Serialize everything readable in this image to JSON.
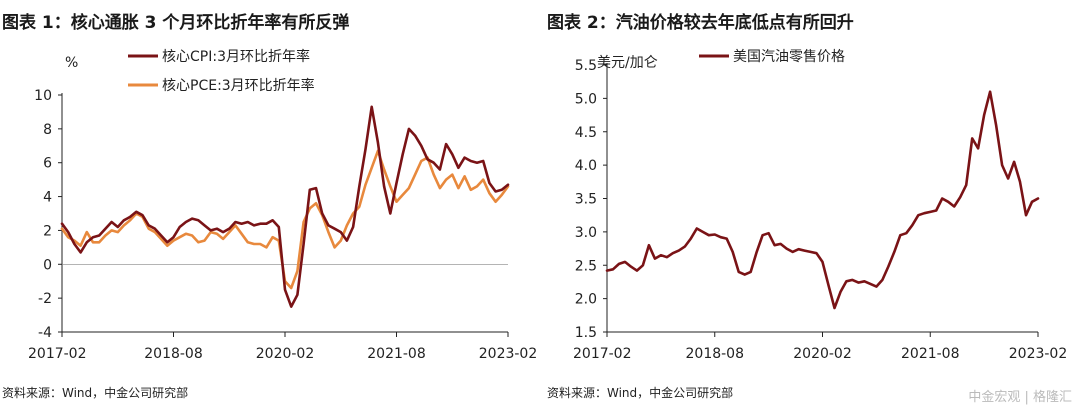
{
  "charts": [
    {
      "panel_title": "图表 1：核心通胀 3 个月环比折年率有所反弹",
      "source": "资料来源：Wind，中金公司研究部",
      "unit": "%",
      "chart_data": {
        "type": "line",
        "title": "图表 1：核心通胀 3 个月环比折年率有所反弹",
        "ylabel": "%",
        "xlabel": "",
        "ylim": [
          -4,
          10
        ],
        "yticks": [
          -4,
          -2,
          0,
          2,
          4,
          6,
          8,
          10
        ],
        "x_tick_labels": [
          "2017-02",
          "2018-08",
          "2020-02",
          "2021-08",
          "2023-02"
        ],
        "legend_position": "top-center",
        "grid": false,
        "x": [
          "2017-02",
          "2017-03",
          "2017-04",
          "2017-05",
          "2017-06",
          "2017-07",
          "2017-08",
          "2017-09",
          "2017-10",
          "2017-11",
          "2017-12",
          "2018-01",
          "2018-02",
          "2018-03",
          "2018-04",
          "2018-05",
          "2018-06",
          "2018-07",
          "2018-08",
          "2018-09",
          "2018-10",
          "2018-11",
          "2018-12",
          "2019-01",
          "2019-02",
          "2019-03",
          "2019-04",
          "2019-05",
          "2019-06",
          "2019-07",
          "2019-08",
          "2019-09",
          "2019-10",
          "2019-11",
          "2019-12",
          "2020-01",
          "2020-02",
          "2020-03",
          "2020-04",
          "2020-05",
          "2020-06",
          "2020-07",
          "2020-08",
          "2020-09",
          "2020-10",
          "2020-11",
          "2020-12",
          "2021-01",
          "2021-02",
          "2021-03",
          "2021-04",
          "2021-05",
          "2021-06",
          "2021-07",
          "2021-08",
          "2021-09",
          "2021-10",
          "2021-11",
          "2021-12",
          "2022-01",
          "2022-02",
          "2022-03",
          "2022-04",
          "2022-05",
          "2022-06",
          "2022-07",
          "2022-08",
          "2022-09",
          "2022-10",
          "2022-11",
          "2022-12",
          "2023-01",
          "2023-02"
        ],
        "series": [
          {
            "name": "核心CPI:3月环比折年率",
            "color": "#7a1316",
            "values": [
              2.4,
              1.9,
              1.2,
              0.7,
              1.3,
              1.6,
              1.7,
              2.1,
              2.5,
              2.2,
              2.6,
              2.8,
              3.1,
              2.9,
              2.3,
              2.1,
              1.7,
              1.3,
              1.6,
              2.2,
              2.5,
              2.7,
              2.6,
              2.3,
              2.0,
              2.1,
              1.9,
              2.1,
              2.5,
              2.4,
              2.5,
              2.3,
              2.4,
              2.4,
              2.6,
              2.2,
              -1.5,
              -2.5,
              -1.8,
              1.2,
              4.4,
              4.5,
              3.0,
              2.3,
              2.1,
              1.9,
              1.4,
              2.2,
              4.6,
              6.8,
              9.3,
              7.2,
              4.6,
              3.0,
              4.8,
              6.5,
              8.0,
              7.6,
              7.0,
              6.2,
              6.0,
              5.6,
              7.1,
              6.5,
              5.7,
              6.3,
              6.1,
              6.0,
              6.1,
              4.8,
              4.3,
              4.4,
              4.7
            ]
          },
          {
            "name": "核心PCE:3月环比折年率",
            "color": "#e8893d",
            "values": [
              2.1,
              1.6,
              1.4,
              1.1,
              1.9,
              1.3,
              1.3,
              1.7,
              2.0,
              1.9,
              2.3,
              2.6,
              3.0,
              2.8,
              2.1,
              1.9,
              1.5,
              1.1,
              1.4,
              1.6,
              1.8,
              1.7,
              1.3,
              1.4,
              1.9,
              1.8,
              1.5,
              1.9,
              2.3,
              1.8,
              1.3,
              1.2,
              1.2,
              1.0,
              1.6,
              1.4,
              -1.0,
              -1.4,
              -0.4,
              2.5,
              3.3,
              3.6,
              2.9,
              1.9,
              1.0,
              1.4,
              2.3,
              3.0,
              3.4,
              4.7,
              5.7,
              6.7,
              5.6,
              4.6,
              3.7,
              4.1,
              4.5,
              5.3,
              6.1,
              6.3,
              5.3,
              4.5,
              5.0,
              5.3,
              4.5,
              5.2,
              4.4,
              4.6,
              5.0,
              4.2,
              3.7,
              4.1,
              4.6
            ]
          }
        ]
      }
    },
    {
      "panel_title": "图表 2：汽油价格较去年底低点有所回升",
      "source": "资料来源：Wind，中金公司研究部",
      "unit": "美元/加仑",
      "chart_data": {
        "type": "line",
        "title": "图表 2：汽油价格较去年底低点有所回升",
        "ylabel": "美元/加仑",
        "xlabel": "",
        "ylim": [
          1.5,
          5.5
        ],
        "yticks": [
          1.5,
          2.0,
          2.5,
          3.0,
          3.5,
          4.0,
          4.5,
          5.0,
          5.5
        ],
        "x_tick_labels": [
          "2017-02",
          "2018-08",
          "2020-02",
          "2021-08",
          "2023-02"
        ],
        "legend_position": "top-center",
        "grid": false,
        "x": [
          "2017-02",
          "2017-03",
          "2017-04",
          "2017-05",
          "2017-06",
          "2017-07",
          "2017-08",
          "2017-09",
          "2017-10",
          "2017-11",
          "2017-12",
          "2018-01",
          "2018-02",
          "2018-03",
          "2018-04",
          "2018-05",
          "2018-06",
          "2018-07",
          "2018-08",
          "2018-09",
          "2018-10",
          "2018-11",
          "2018-12",
          "2019-01",
          "2019-02",
          "2019-03",
          "2019-04",
          "2019-05",
          "2019-06",
          "2019-07",
          "2019-08",
          "2019-09",
          "2019-10",
          "2019-11",
          "2019-12",
          "2020-01",
          "2020-02",
          "2020-03",
          "2020-04",
          "2020-05",
          "2020-06",
          "2020-07",
          "2020-08",
          "2020-09",
          "2020-10",
          "2020-11",
          "2020-12",
          "2021-01",
          "2021-02",
          "2021-03",
          "2021-04",
          "2021-05",
          "2021-06",
          "2021-07",
          "2021-08",
          "2021-09",
          "2021-10",
          "2021-11",
          "2021-12",
          "2022-01",
          "2022-02",
          "2022-03",
          "2022-04",
          "2022-05",
          "2022-06",
          "2022-07",
          "2022-08",
          "2022-09",
          "2022-10",
          "2022-11",
          "2022-12",
          "2023-01",
          "2023-02"
        ],
        "series": [
          {
            "name": "美国汽油零售价格",
            "color": "#7a1316",
            "values": [
              2.42,
              2.44,
              2.52,
              2.55,
              2.48,
              2.42,
              2.5,
              2.8,
              2.6,
              2.65,
              2.62,
              2.68,
              2.72,
              2.78,
              2.9,
              3.05,
              3.0,
              2.95,
              2.96,
              2.92,
              2.9,
              2.7,
              2.4,
              2.36,
              2.4,
              2.7,
              2.95,
              2.98,
              2.8,
              2.82,
              2.75,
              2.7,
              2.74,
              2.72,
              2.7,
              2.68,
              2.55,
              2.2,
              1.86,
              2.1,
              2.26,
              2.28,
              2.24,
              2.26,
              2.22,
              2.18,
              2.28,
              2.48,
              2.7,
              2.95,
              2.98,
              3.1,
              3.25,
              3.28,
              3.3,
              3.32,
              3.5,
              3.45,
              3.38,
              3.52,
              3.7,
              4.4,
              4.25,
              4.75,
              5.1,
              4.6,
              4.0,
              3.8,
              4.05,
              3.75,
              3.25,
              3.45,
              3.5
            ]
          }
        ]
      }
    }
  ],
  "watermark": "中金宏观 | 格隆汇"
}
